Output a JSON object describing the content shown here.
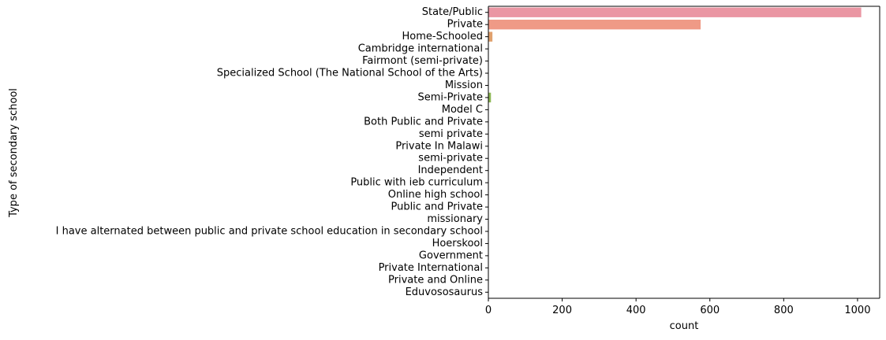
{
  "chart_data": {
    "type": "bar",
    "orientation": "horizontal",
    "xlabel": "count",
    "ylabel": "Type of secondary school",
    "xlim": [
      0,
      1060
    ],
    "xticks": [
      0,
      200,
      400,
      600,
      800,
      1000
    ],
    "grid": false,
    "categories": [
      "State/Public",
      "Private",
      "Home-Schooled",
      "Cambridge international ",
      "Fairmont (semi-private)",
      "Specialized School (The National School of the Arts)",
      "Mission",
      "Semi-Private",
      "Model C",
      "Both Public and Private ",
      "semi private ",
      "Private In Malawi",
      "semi-private ",
      "Independent",
      "Public with ieb curriculum ",
      "Online high school",
      "Public and Private",
      "missionary",
      "I have alternated between public and private school education in secondary school",
      "Hoerskool",
      "Government ",
      "Private International",
      "Private and Online",
      "Eduvososaurus"
    ],
    "values": [
      1010,
      575,
      11,
      1,
      1,
      1,
      1,
      7,
      1,
      1,
      1,
      1,
      1,
      1,
      1,
      1,
      1,
      1,
      1,
      1,
      1,
      1,
      1,
      1
    ],
    "colors": [
      "#ea96a3",
      "#ef9a86",
      "#e0a06c",
      "#d1a65c",
      "#c1aa58",
      "#b0ae54",
      "#a0b253",
      "#8cb653",
      "#74b757",
      "#55b85c",
      "#4fb88a",
      "#52b7a0",
      "#53b5ad",
      "#54b3b7",
      "#56b2c1",
      "#58afca",
      "#5faed4",
      "#79a8de",
      "#95a2e6",
      "#ad9be9",
      "#c390e8",
      "#d88be0",
      "#e68bcf",
      "#e992bd"
    ]
  }
}
